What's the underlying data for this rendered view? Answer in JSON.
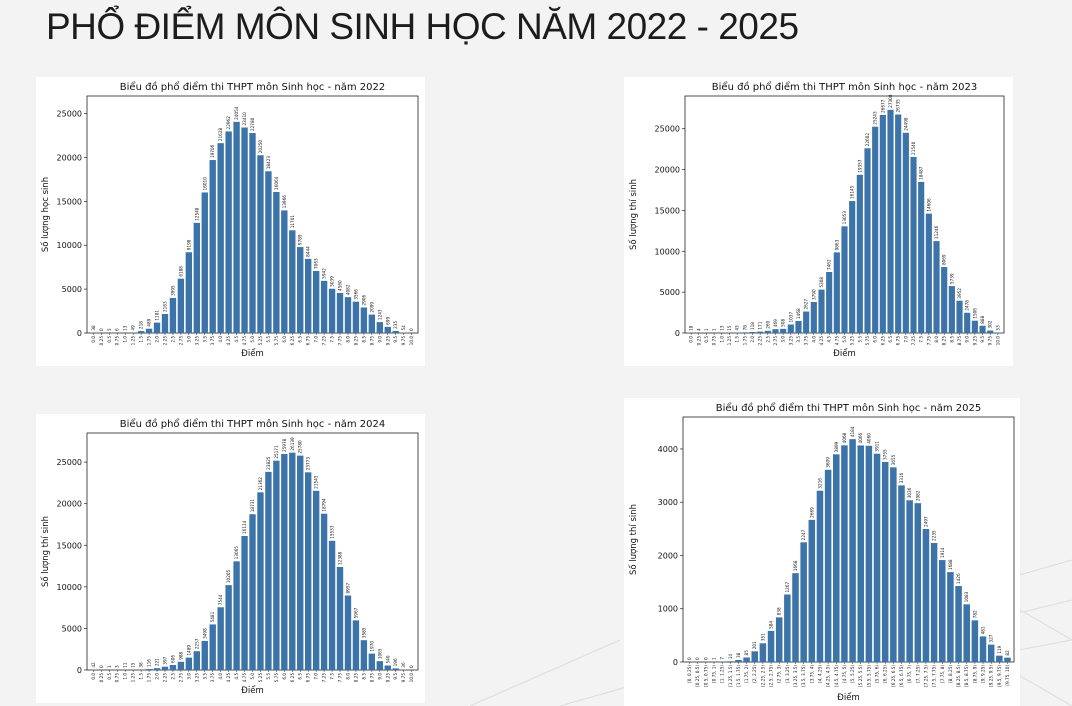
{
  "page": {
    "title": "PHỔ ĐIỂM MÔN SINH HỌC NĂM 2022 - 2025"
  },
  "colors": {
    "bar": "#3c73a8",
    "background": "#f3f3f3",
    "title": "#1c1c1c"
  },
  "chart_data": [
    {
      "type": "bar",
      "title": "Biểu đồ phổ điểm thi THPT môn Sinh học - năm 2022",
      "xlabel": "Điểm",
      "ylabel": "Số lượng học sinh",
      "ylim": [
        0,
        27000
      ],
      "yticks": [
        0,
        5000,
        10000,
        15000,
        20000,
        25000
      ],
      "grid": false,
      "categories": [
        "0.0",
        "0.25",
        "0.5",
        "0.75",
        "1.0",
        "1.25",
        "1.5",
        "1.75",
        "2.0",
        "2.25",
        "2.5",
        "2.75",
        "3.0",
        "3.25",
        "3.5",
        "3.75",
        "4.0",
        "4.25",
        "4.5",
        "4.75",
        "5.0",
        "5.25",
        "5.5",
        "5.75",
        "6.0",
        "6.25",
        "6.5",
        "6.75",
        "7.0",
        "7.25",
        "7.5",
        "7.75",
        "8.0",
        "8.25",
        "8.5",
        "8.75",
        "9.0",
        "9.25",
        "9.5",
        "9.75",
        "10.0"
      ],
      "values": [
        38,
        0,
        5,
        6,
        13,
        49,
        218,
        489,
        1181,
        2163,
        3995,
        6188,
        9198,
        12548,
        16010,
        19706,
        21628,
        22962,
        24054,
        23410,
        22780,
        20250,
        18423,
        16064,
        13966,
        11701,
        9789,
        8444,
        7063,
        5942,
        5039,
        4560,
        4082,
        3566,
        2906,
        2099,
        1243,
        699,
        235,
        54,
        0
      ]
    },
    {
      "type": "bar",
      "title": "Biểu đồ phổ điểm thi THPT môn Sinh học - năm 2023",
      "xlabel": "Điểm",
      "ylabel": "Số lượng thí sinh",
      "ylim": [
        0,
        29000
      ],
      "yticks": [
        0,
        5000,
        10000,
        15000,
        20000,
        25000
      ],
      "grid": false,
      "categories": [
        "0.0",
        "0.25",
        "0.5",
        "0.75",
        "1.0",
        "1.25",
        "1.5",
        "1.75",
        "2.0",
        "2.25",
        "2.5",
        "2.75",
        "3.0",
        "3.25",
        "3.5",
        "3.75",
        "4.0",
        "4.25",
        "4.5",
        "4.75",
        "5.0",
        "5.25",
        "5.5",
        "5.75",
        "6.0",
        "6.25",
        "6.5",
        "6.75",
        "7.0",
        "7.25",
        "7.5",
        "7.75",
        "8.0",
        "8.25",
        "8.5",
        "8.75",
        "9.0",
        "9.25",
        "9.5",
        "9.75",
        "10.0"
      ],
      "values": [
        18,
        4,
        1,
        1,
        13,
        15,
        43,
        78,
        118,
        171,
        269,
        469,
        508,
        1037,
        1468,
        2627,
        3790,
        5308,
        7462,
        9863,
        13053,
        16145,
        19357,
        22602,
        25243,
        26677,
        27308,
        26735,
        24498,
        21540,
        18487,
        14606,
        11246,
        8069,
        5739,
        3952,
        2478,
        1506,
        888,
        302,
        53
      ]
    },
    {
      "type": "bar",
      "title": "Biểu đồ phổ điểm thi THPT môn Sinh học - năm 2024",
      "xlabel": "Điểm",
      "ylabel": "Số lượng thí sinh",
      "ylim": [
        0,
        28500
      ],
      "yticks": [
        0,
        5000,
        10000,
        15000,
        20000,
        25000
      ],
      "grid": false,
      "categories": [
        "0.0",
        "0.25",
        "0.5",
        "0.75",
        "1.0",
        "1.25",
        "1.5",
        "1.75",
        "2.0",
        "2.25",
        "2.5",
        "2.75",
        "3.0",
        "3.25",
        "3.5",
        "3.75",
        "4.0",
        "4.25",
        "4.5",
        "4.75",
        "5.0",
        "5.25",
        "5.5",
        "5.75",
        "6.0",
        "6.25",
        "6.5",
        "6.75",
        "7.0",
        "7.25",
        "7.5",
        "7.75",
        "8.0",
        "8.25",
        "8.5",
        "8.75",
        "9.0",
        "9.25",
        "9.5",
        "9.75",
        "10.0"
      ],
      "values": [
        42,
        0,
        1,
        3,
        11,
        15,
        38,
        116,
        221,
        397,
        606,
        988,
        1489,
        2257,
        3498,
        5481,
        7544,
        10205,
        13065,
        16114,
        18731,
        21362,
        23825,
        25171,
        25978,
        26139,
        25780,
        23773,
        21545,
        18794,
        15533,
        12388,
        8957,
        5967,
        3585,
        1970,
        1065,
        540,
        196,
        36,
        0
      ]
    },
    {
      "type": "bar",
      "title": "Biểu đồ phổ điểm thi THPT môn Sinh học - năm 2025",
      "xlabel": "Điểm",
      "ylabel": "Số lượng thí sinh",
      "ylim": [
        0,
        4600
      ],
      "yticks": [
        0,
        1000,
        2000,
        3000,
        4000
      ],
      "grid": false,
      "categories": [
        "[0, 0.25)",
        "[0.25, 0.5)",
        "[0.5, 0.75)",
        "[0.75, 1)",
        "[1, 1.25)",
        "[1.25, 1.5)",
        "[1.5, 1.75)",
        "[1.75, 2)",
        "[2, 2.25)",
        "[2.25, 2.5)",
        "[2.5, 2.75)",
        "[2.75, 3)",
        "[3, 3.25)",
        "[3.25, 3.5)",
        "[3.5, 3.75)",
        "[3.75, 4)",
        "[4, 4.25)",
        "[4.25, 4.5)",
        "[4.5, 4.75)",
        "[4.75, 5)",
        "[5, 5.25)",
        "[5.25, 5.5)",
        "[5.5, 5.75)",
        "[5.75, 6)",
        "[6, 6.25)",
        "[6.25, 6.5)",
        "[6.5, 6.75)",
        "[6.75, 7)",
        "[7, 7.25)",
        "[7.25, 7.5)",
        "[7.5, 7.75)",
        "[7.75, 8)",
        "[8, 8.25)",
        "[8.25, 8.5)",
        "[8.5, 8.75)",
        "[8.75, 9)",
        "[9, 9.25)",
        "[9.25, 9.5)",
        "[9.5, 9.75)",
        "[9.75, 10]"
      ],
      "values": [
        0,
        0,
        0,
        1,
        7,
        14,
        38,
        85,
        201,
        351,
        584,
        838,
        1267,
        1668,
        2247,
        2669,
        3216,
        3609,
        3899,
        4068,
        4184,
        4066,
        4060,
        3911,
        3755,
        3655,
        3316,
        3036,
        2982,
        2497,
        2235,
        1914,
        1688,
        1426,
        1083,
        782,
        481,
        327,
        119,
        82
      ]
    }
  ]
}
